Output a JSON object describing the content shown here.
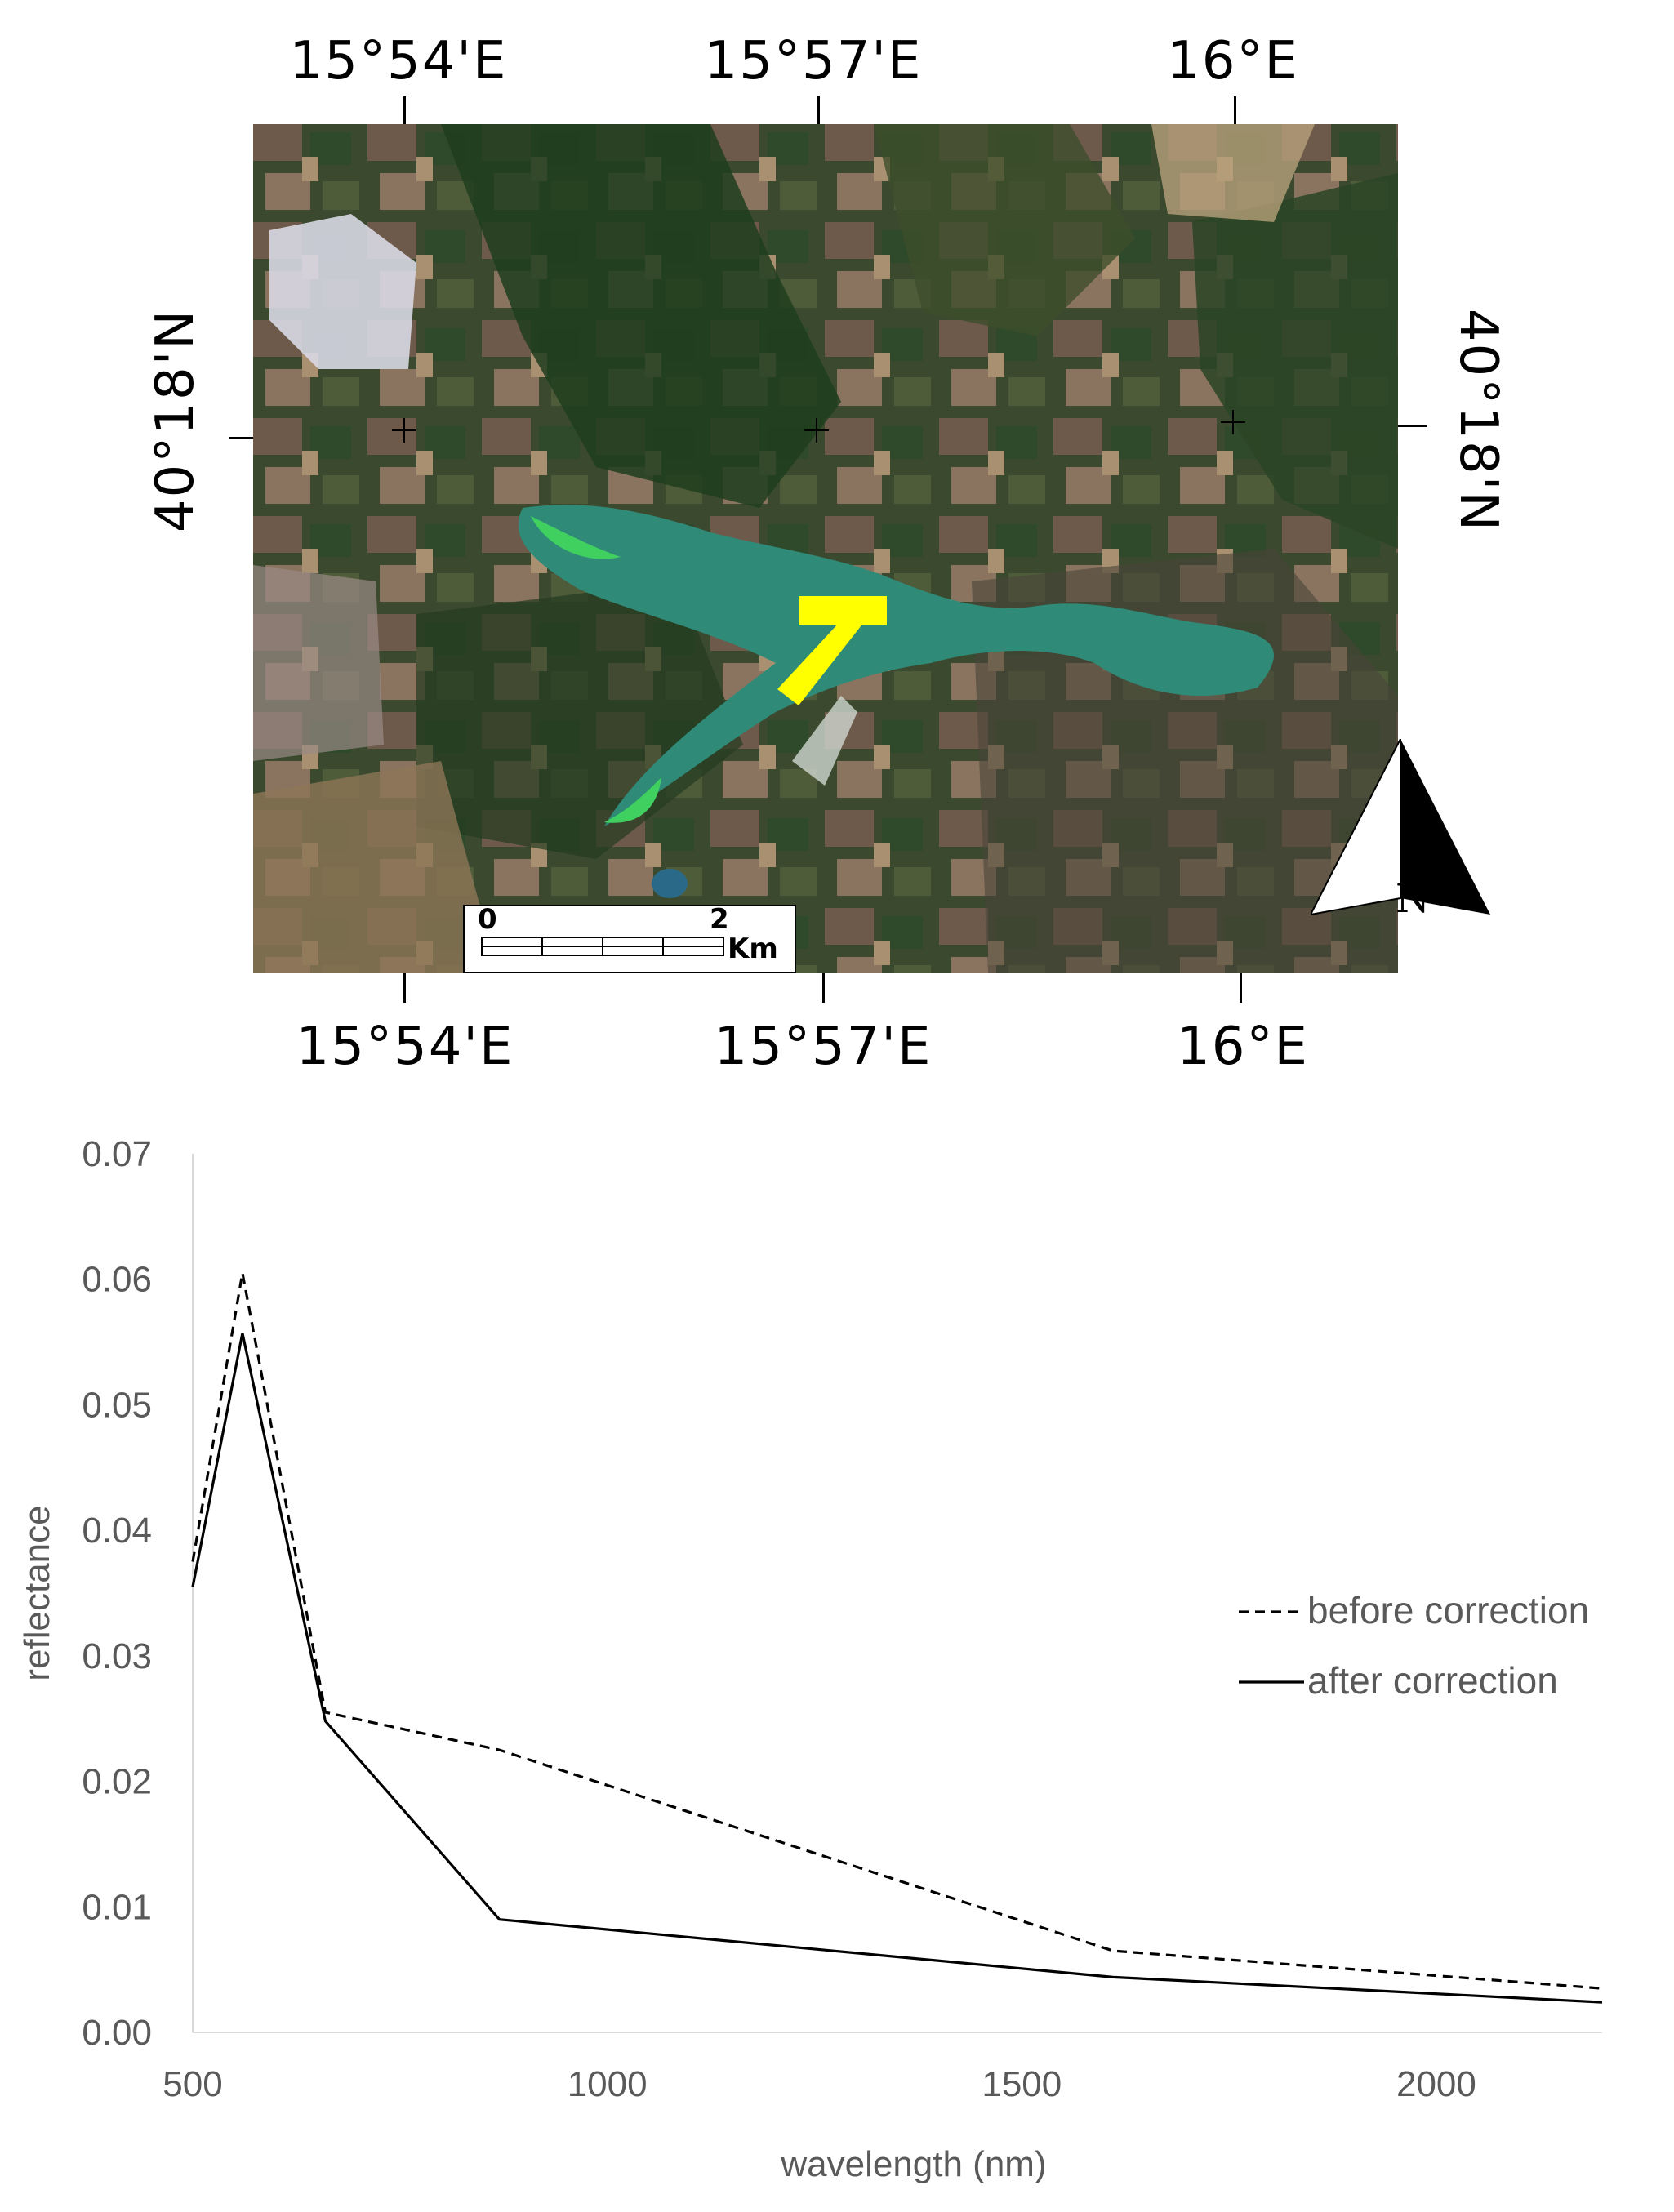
{
  "map": {
    "top_longitudes": [
      "15°54'E",
      "15°57'E",
      "16°E"
    ],
    "bottom_longitudes": [
      "15°54'E",
      "15°57'E",
      "16°E"
    ],
    "left_latitude": "40°18'N",
    "right_latitude": "40°18'N",
    "scale_bar": {
      "start": "0",
      "end": "2",
      "unit": "Km"
    },
    "north_label": "N",
    "colors": {
      "water": "#2f8a78",
      "marker": "#ffff00"
    }
  },
  "chart_data": {
    "type": "line",
    "xlabel": "wavelength (nm)",
    "ylabel": "reflectance",
    "xlim": [
      500,
      2200
    ],
    "ylim": [
      0,
      0.07
    ],
    "x_ticks": [
      "500",
      "1000",
      "1500",
      "2000"
    ],
    "y_ticks": [
      "0.00",
      "0.01",
      "0.02",
      "0.03",
      "0.04",
      "0.05",
      "0.06",
      "0.07"
    ],
    "grid": false,
    "legend_position": "right",
    "series": [
      {
        "name": "before correction",
        "style": "dashed",
        "color": "#000000",
        "x": [
          500,
          560,
          660,
          870,
          1610,
          2200
        ],
        "y": [
          0.0375,
          0.0605,
          0.0255,
          0.0225,
          0.0065,
          0.0035
        ]
      },
      {
        "name": "after correction",
        "style": "solid",
        "color": "#000000",
        "x": [
          500,
          560,
          660,
          870,
          1610,
          2200
        ],
        "y": [
          0.0355,
          0.0557,
          0.0248,
          0.009,
          0.0044,
          0.0024
        ]
      }
    ]
  }
}
